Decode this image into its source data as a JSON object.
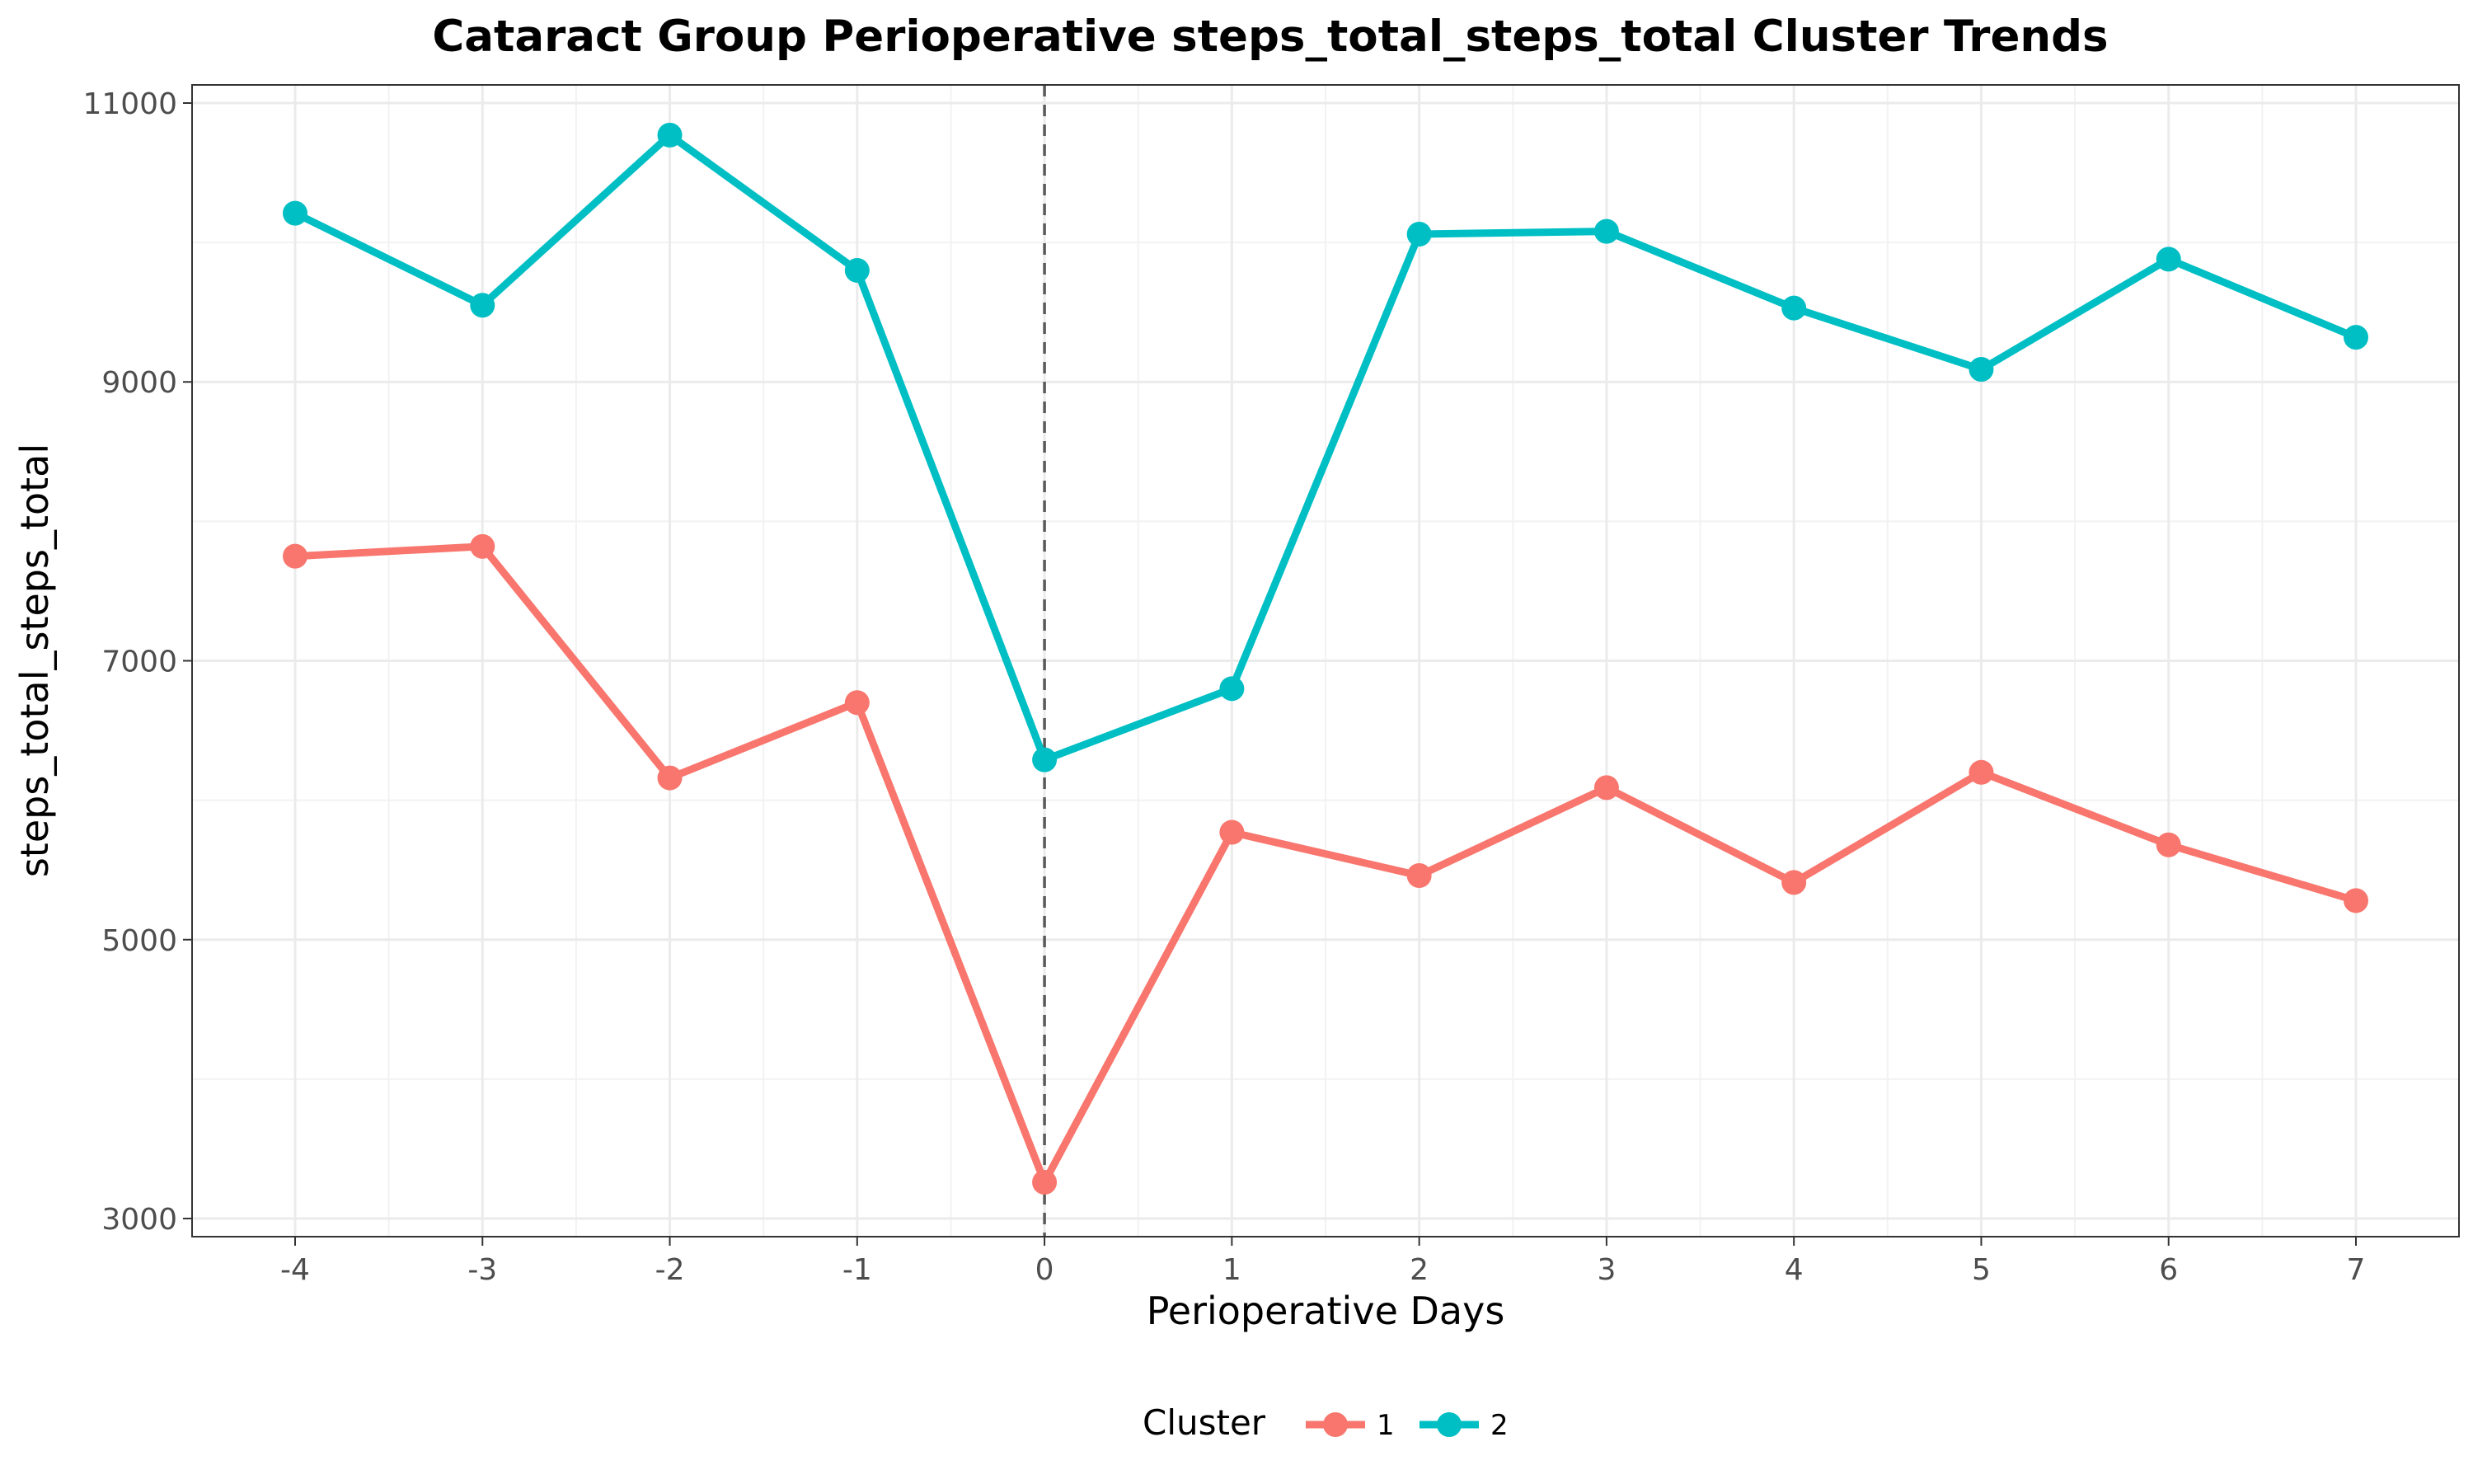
{
  "chart_data": {
    "type": "line",
    "title": "Cataract Group Perioperative steps_total_steps_total Cluster Trends",
    "xlabel": "Perioperative Days",
    "ylabel": "steps_total_steps_total",
    "x": [
      -4,
      -3,
      -2,
      -1,
      0,
      1,
      2,
      3,
      4,
      5,
      6,
      7
    ],
    "x_tick_labels": [
      "-4",
      "-3",
      "-2",
      "-1",
      "0",
      "1",
      "2",
      "3",
      "4",
      "5",
      "6",
      "7"
    ],
    "y_ticks": [
      3000,
      5000,
      7000,
      9000,
      11000
    ],
    "y_tick_labels": [
      "3000",
      "5000",
      "7000",
      "9000",
      "11000"
    ],
    "xlim": [
      -4.55,
      7.55
    ],
    "ylim": [
      2870,
      11130
    ],
    "grid": true,
    "reference_line": {
      "x": 0,
      "style": "dashed"
    },
    "legend": {
      "title": "Cluster",
      "position": "bottom"
    },
    "series": [
      {
        "name": "1",
        "color": "#F8766D",
        "values": [
          7750,
          7820,
          6160,
          6700,
          3260,
          5770,
          5460,
          6090,
          5410,
          6200,
          5680,
          5280
        ]
      },
      {
        "name": "2",
        "color": "#00BFC4",
        "values": [
          10210,
          9550,
          10770,
          9800,
          6290,
          6800,
          10060,
          10080,
          9530,
          9090,
          9880,
          9320
        ]
      }
    ]
  }
}
